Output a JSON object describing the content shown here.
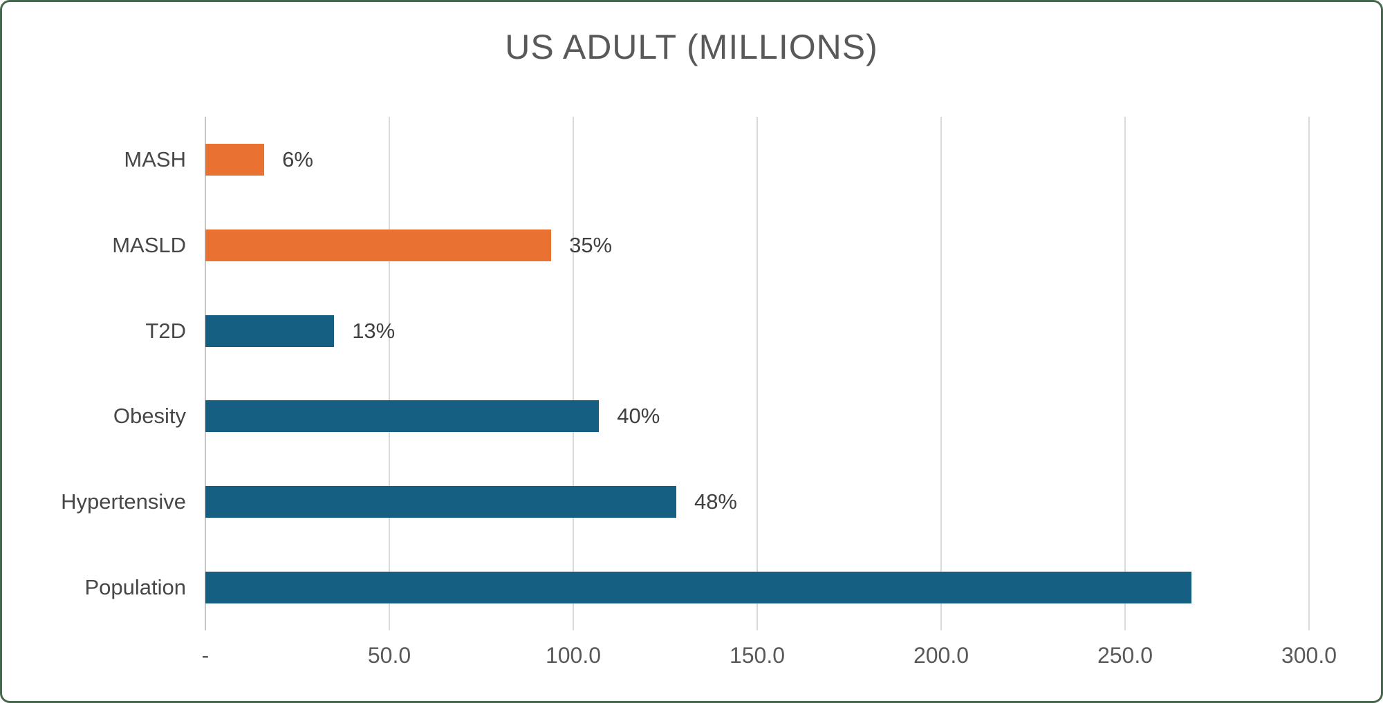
{
  "chart_data": {
    "type": "bar",
    "orientation": "horizontal",
    "title": "US ADULT (MILLIONS)",
    "categories": [
      "MASH",
      "MASLD",
      "T2D",
      "Obesity",
      "Hypertensive",
      "Population"
    ],
    "values": [
      16,
      94,
      35,
      107,
      128,
      268
    ],
    "data_labels": [
      "6%",
      "35%",
      "13%",
      "40%",
      "48%",
      ""
    ],
    "bar_colors": [
      "#E97132",
      "#E97132",
      "#156082",
      "#156082",
      "#156082",
      "#156082"
    ],
    "x_ticks": [
      "-",
      "50.0",
      "100.0",
      "150.0",
      "200.0",
      "250.0",
      "300.0"
    ],
    "x_tick_values": [
      0,
      50,
      100,
      150,
      200,
      250,
      300
    ],
    "xlim": [
      0,
      300
    ],
    "xlabel": "",
    "ylabel": "",
    "gridlines": true,
    "legend": "none"
  },
  "colors": {
    "accent_teal": "#156082",
    "accent_orange": "#E97132",
    "gridline": "#D9D9D9",
    "title_text": "#595959",
    "label_text": "#404040",
    "frame_border": "#48684E",
    "background": "#FFFFFF"
  }
}
